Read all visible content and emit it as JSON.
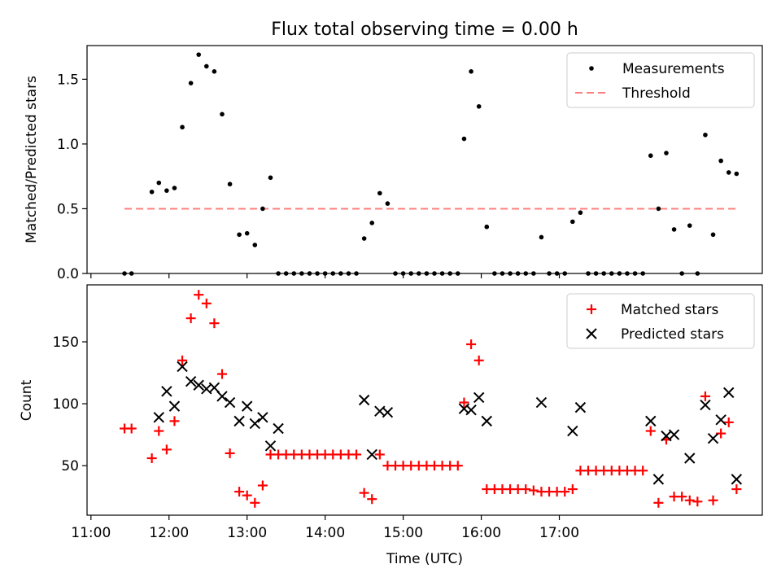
{
  "chart_data": [
    {
      "type": "scatter",
      "title": "Flux total observing time = 0.00 h",
      "ylabel": "Matched/Predicted stars",
      "ylim": [
        0,
        1.76
      ],
      "yticks": [
        "0.0",
        "0.5",
        "1.0",
        "1.5"
      ],
      "ytick_values": [
        0,
        0.5,
        1.0,
        1.5
      ],
      "legend_position": "top-right",
      "series": [
        {
          "name": "Measurements",
          "marker": "dot",
          "color": "#000000",
          "points": [
            [
              11.43,
              0.0
            ],
            [
              11.52,
              0.0
            ],
            [
              11.78,
              0.63
            ],
            [
              11.87,
              0.7
            ],
            [
              11.97,
              0.64
            ],
            [
              12.07,
              0.66
            ],
            [
              12.17,
              1.13
            ],
            [
              12.28,
              1.47
            ],
            [
              12.38,
              1.69
            ],
            [
              12.48,
              1.6
            ],
            [
              12.58,
              1.56
            ],
            [
              12.68,
              1.23
            ],
            [
              12.78,
              0.69
            ],
            [
              12.9,
              0.3
            ],
            [
              13.0,
              0.31
            ],
            [
              13.1,
              0.22
            ],
            [
              13.2,
              0.5
            ],
            [
              13.3,
              0.74
            ],
            [
              13.4,
              0.0
            ],
            [
              13.5,
              0.0
            ],
            [
              13.6,
              0.0
            ],
            [
              13.7,
              0.0
            ],
            [
              13.8,
              0.0
            ],
            [
              13.9,
              0.0
            ],
            [
              14.0,
              0.0
            ],
            [
              14.1,
              0.0
            ],
            [
              14.2,
              0.0
            ],
            [
              14.3,
              0.0
            ],
            [
              14.4,
              0.0
            ],
            [
              14.5,
              0.27
            ],
            [
              14.6,
              0.39
            ],
            [
              14.7,
              0.62
            ],
            [
              14.8,
              0.54
            ],
            [
              14.9,
              0.0
            ],
            [
              15.0,
              0.0
            ],
            [
              15.1,
              0.0
            ],
            [
              15.2,
              0.0
            ],
            [
              15.3,
              0.0
            ],
            [
              15.4,
              0.0
            ],
            [
              15.5,
              0.0
            ],
            [
              15.6,
              0.0
            ],
            [
              15.7,
              0.0
            ],
            [
              15.78,
              1.04
            ],
            [
              15.87,
              1.56
            ],
            [
              15.97,
              1.29
            ],
            [
              16.07,
              0.36
            ],
            [
              16.17,
              0.0
            ],
            [
              16.27,
              0.0
            ],
            [
              16.37,
              0.0
            ],
            [
              16.47,
              0.0
            ],
            [
              16.57,
              0.0
            ],
            [
              16.67,
              0.0
            ],
            [
              16.77,
              0.28
            ],
            [
              16.87,
              0.0
            ],
            [
              16.97,
              0.0
            ],
            [
              17.07,
              0.0
            ],
            [
              17.17,
              0.4
            ],
            [
              17.27,
              0.47
            ],
            [
              17.37,
              0.0
            ],
            [
              17.47,
              0.0
            ],
            [
              17.57,
              0.0
            ],
            [
              17.67,
              0.0
            ],
            [
              17.77,
              0.0
            ],
            [
              17.87,
              0.0
            ],
            [
              17.97,
              0.0
            ],
            [
              18.07,
              0.0
            ],
            [
              18.17,
              0.91
            ],
            [
              18.27,
              0.5
            ],
            [
              18.37,
              0.93
            ],
            [
              18.47,
              0.34
            ],
            [
              18.57,
              0.0
            ],
            [
              18.67,
              0.37
            ],
            [
              18.77,
              0.0
            ],
            [
              18.87,
              1.07
            ],
            [
              18.97,
              0.3
            ],
            [
              19.07,
              0.87
            ],
            [
              19.17,
              0.78
            ],
            [
              19.27,
              0.77
            ]
          ]
        },
        {
          "name": "Threshold",
          "marker": "dashed-line",
          "color": "#ff7f7f",
          "x": [
            11.43,
            19.27
          ],
          "y": [
            0.5,
            0.5
          ]
        }
      ]
    },
    {
      "type": "scatter",
      "xlabel": "Time (UTC)",
      "ylabel": "Count",
      "ylim": [
        10,
        196
      ],
      "xlim": [
        10.95,
        19.6
      ],
      "yticks": [
        "50",
        "100",
        "150"
      ],
      "ytick_values": [
        50,
        100,
        150
      ],
      "xticks": [
        "11:00",
        "12:00",
        "13:00",
        "14:00",
        "15:00",
        "16:00",
        "17:00"
      ],
      "xtick_values": [
        11,
        12,
        13,
        14,
        15,
        16,
        17
      ],
      "legend_position": "top-right",
      "series": [
        {
          "name": "Matched stars",
          "marker": "plus",
          "color": "#ff0000",
          "points": [
            [
              11.43,
              80
            ],
            [
              11.52,
              80
            ],
            [
              11.78,
              56
            ],
            [
              11.87,
              78
            ],
            [
              11.97,
              63
            ],
            [
              12.07,
              86
            ],
            [
              12.17,
              135
            ],
            [
              12.28,
              169
            ],
            [
              12.38,
              188
            ],
            [
              12.48,
              181
            ],
            [
              12.58,
              165
            ],
            [
              12.68,
              124
            ],
            [
              12.78,
              60
            ],
            [
              12.9,
              29
            ],
            [
              13.0,
              26
            ],
            [
              13.1,
              20
            ],
            [
              13.2,
              34
            ],
            [
              13.3,
              59
            ],
            [
              13.4,
              59
            ],
            [
              13.5,
              59
            ],
            [
              13.6,
              59
            ],
            [
              13.7,
              59
            ],
            [
              13.8,
              59
            ],
            [
              13.9,
              59
            ],
            [
              14.0,
              59
            ],
            [
              14.1,
              59
            ],
            [
              14.2,
              59
            ],
            [
              14.3,
              59
            ],
            [
              14.4,
              59
            ],
            [
              14.5,
              28
            ],
            [
              14.6,
              23
            ],
            [
              14.7,
              59
            ],
            [
              14.8,
              50
            ],
            [
              14.9,
              50
            ],
            [
              15.0,
              50
            ],
            [
              15.1,
              50
            ],
            [
              15.2,
              50
            ],
            [
              15.3,
              50
            ],
            [
              15.4,
              50
            ],
            [
              15.5,
              50
            ],
            [
              15.6,
              50
            ],
            [
              15.7,
              50
            ],
            [
              15.78,
              101
            ],
            [
              15.87,
              148
            ],
            [
              15.97,
              135
            ],
            [
              16.07,
              31
            ],
            [
              16.17,
              31
            ],
            [
              16.27,
              31
            ],
            [
              16.37,
              31
            ],
            [
              16.47,
              31
            ],
            [
              16.57,
              31
            ],
            [
              16.67,
              30
            ],
            [
              16.77,
              29
            ],
            [
              16.87,
              29
            ],
            [
              16.97,
              29
            ],
            [
              17.07,
              29
            ],
            [
              17.17,
              31
            ],
            [
              17.27,
              46
            ],
            [
              17.37,
              46
            ],
            [
              17.47,
              46
            ],
            [
              17.57,
              46
            ],
            [
              17.67,
              46
            ],
            [
              17.77,
              46
            ],
            [
              17.87,
              46
            ],
            [
              17.97,
              46
            ],
            [
              18.07,
              46
            ],
            [
              18.17,
              78
            ],
            [
              18.27,
              20
            ],
            [
              18.37,
              71
            ],
            [
              18.47,
              25
            ],
            [
              18.57,
              25
            ],
            [
              18.67,
              22
            ],
            [
              18.77,
              21
            ],
            [
              18.87,
              106
            ],
            [
              18.97,
              22
            ],
            [
              19.07,
              76
            ],
            [
              19.17,
              85
            ],
            [
              19.27,
              31
            ]
          ]
        },
        {
          "name": "Predicted stars",
          "marker": "x",
          "color": "#000000",
          "points": [
            [
              11.87,
              89
            ],
            [
              11.97,
              110
            ],
            [
              12.07,
              98
            ],
            [
              12.17,
              130
            ],
            [
              12.28,
              118
            ],
            [
              12.38,
              115
            ],
            [
              12.48,
              112
            ],
            [
              12.58,
              113
            ],
            [
              12.68,
              106
            ],
            [
              12.78,
              101
            ],
            [
              12.9,
              86
            ],
            [
              13.0,
              98
            ],
            [
              13.1,
              84
            ],
            [
              13.2,
              89
            ],
            [
              13.3,
              66
            ],
            [
              13.4,
              80
            ],
            [
              14.5,
              103
            ],
            [
              14.6,
              59
            ],
            [
              14.7,
              94
            ],
            [
              14.8,
              93
            ],
            [
              15.78,
              96
            ],
            [
              15.87,
              95
            ],
            [
              15.97,
              105
            ],
            [
              16.07,
              86
            ],
            [
              16.77,
              101
            ],
            [
              17.17,
              78
            ],
            [
              17.27,
              97
            ],
            [
              18.17,
              86
            ],
            [
              18.27,
              39
            ],
            [
              18.37,
              74
            ],
            [
              18.47,
              75
            ],
            [
              18.67,
              56
            ],
            [
              18.87,
              99
            ],
            [
              18.97,
              72
            ],
            [
              19.07,
              87
            ],
            [
              19.17,
              109
            ],
            [
              19.27,
              39
            ]
          ]
        }
      ]
    }
  ]
}
